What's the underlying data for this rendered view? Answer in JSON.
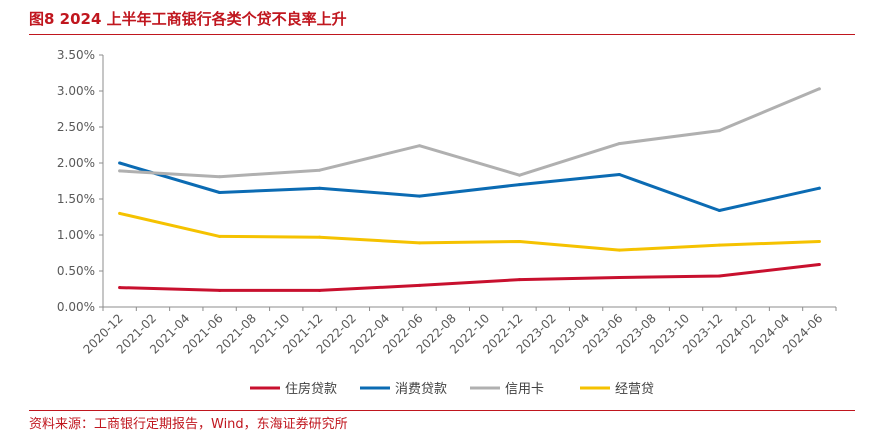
{
  "header": {
    "title": "图8  2024 上半年工商银行各类个贷不良率上升"
  },
  "footer": {
    "source": "资料来源：工商银行定期报告，Wind，东海证券研究所"
  },
  "chart_data": {
    "type": "line",
    "title": "图8  2024 上半年工商银行各类个贷不良率上升",
    "xlabel": "",
    "ylabel": "",
    "ylim": [
      0,
      3.5
    ],
    "y_ticks": [
      "0.00%",
      "0.50%",
      "1.00%",
      "1.50%",
      "2.00%",
      "2.50%",
      "3.00%",
      "3.50%"
    ],
    "x_ticks": [
      "2020-12",
      "2021-02",
      "2021-04",
      "2021-06",
      "2021-08",
      "2021-10",
      "2021-12",
      "2022-02",
      "2022-04",
      "2022-06",
      "2022-08",
      "2022-10",
      "2022-12",
      "2023-02",
      "2023-04",
      "2023-06",
      "2023-08",
      "2023-10",
      "2023-12",
      "2024-02",
      "2024-04",
      "2024-06"
    ],
    "grid": false,
    "legend_position": "bottom",
    "x": [
      "2020-12",
      "2021-06",
      "2021-12",
      "2022-06",
      "2022-12",
      "2023-06",
      "2023-12",
      "2024-06"
    ],
    "series": [
      {
        "name": "住房贷款",
        "color": "#c8102e",
        "values": [
          0.27,
          0.23,
          0.23,
          0.3,
          0.38,
          0.41,
          0.43,
          0.59
        ]
      },
      {
        "name": "消费贷款",
        "color": "#0b6bb3",
        "values": [
          2.0,
          1.59,
          1.65,
          1.54,
          1.7,
          1.84,
          1.34,
          1.65
        ]
      },
      {
        "name": "信用卡",
        "color": "#b0b0b0",
        "values": [
          1.89,
          1.81,
          1.9,
          2.24,
          1.83,
          2.27,
          2.45,
          3.03
        ]
      },
      {
        "name": "经营贷",
        "color": "#f5c200",
        "values": [
          1.3,
          0.98,
          0.97,
          0.89,
          0.91,
          0.79,
          0.86,
          0.91
        ]
      }
    ]
  }
}
